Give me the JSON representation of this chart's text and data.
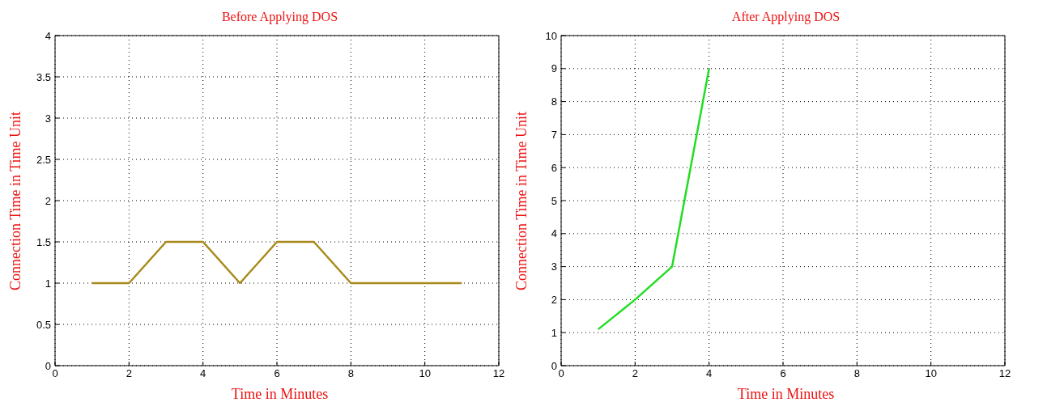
{
  "chart_data": [
    {
      "type": "line",
      "title": "Before Applying DOS",
      "xlabel": "Time in Minutes",
      "ylabel": "Connection Time in Time Unit",
      "x": [
        1,
        2,
        3,
        4,
        5,
        6,
        7,
        8,
        9,
        10,
        11
      ],
      "series": [
        {
          "color": "#a88a1c",
          "values": [
            1,
            1,
            1.5,
            1.5,
            1,
            1.5,
            1.5,
            1,
            1,
            1,
            1
          ]
        }
      ],
      "xlim": [
        0,
        12
      ],
      "xticks": [
        0,
        2,
        4,
        6,
        8,
        10,
        12
      ],
      "ylim": [
        0,
        4
      ],
      "yticks": [
        0,
        0.5,
        1,
        1.5,
        2,
        2.5,
        3,
        3.5,
        4
      ],
      "grid": true,
      "line_style": "solid"
    },
    {
      "type": "line",
      "title": "After Applying DOS",
      "xlabel": "Time in Minutes",
      "ylabel": "Connection Time in Time Unit",
      "x": [
        1,
        2,
        3,
        4
      ],
      "series": [
        {
          "color": "#22dd22",
          "values": [
            1.1,
            2.0,
            3,
            9
          ]
        }
      ],
      "xlim": [
        0,
        12
      ],
      "xticks": [
        0,
        2,
        4,
        6,
        8,
        10,
        12
      ],
      "ylim": [
        0,
        10
      ],
      "yticks": [
        0,
        1,
        2,
        3,
        4,
        5,
        6,
        7,
        8,
        9,
        10
      ],
      "grid": true,
      "line_style": "solid"
    }
  ]
}
